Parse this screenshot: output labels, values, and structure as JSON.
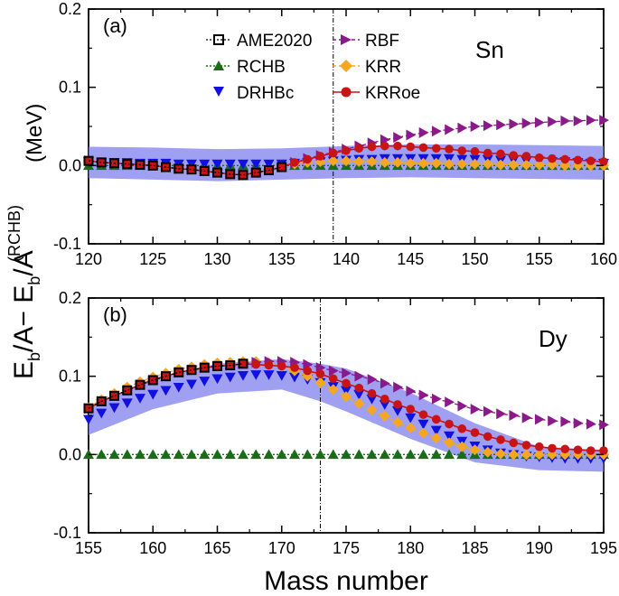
{
  "figure": {
    "xlabel": "Mass number",
    "ylabel": {
      "p1": "E",
      "s1": "b",
      "p2": "/A− E",
      "s2": "b",
      "p3": "/A",
      "sup": "(RCHB)"
    },
    "yunit": "(MeV)"
  },
  "legend": {
    "ame": "AME2020",
    "rchb": "RCHB",
    "drhbc": "DRHBc",
    "rbf": "RBF",
    "krr": "KRR",
    "krroe": "KRRoe"
  },
  "colors": {
    "ame": "#000000",
    "rchb": "#1a6b1a",
    "drhbc": "#1010e0",
    "rbf": "#8a1a8a",
    "krr": "#f5a623",
    "krroe": "#c81414",
    "band": "#8080ee"
  },
  "chart_data": [
    {
      "type": "scatter",
      "panel": "(a)",
      "element": "Sn",
      "xlim": [
        120,
        160
      ],
      "ylim": [
        -0.1,
        0.2
      ],
      "xticks": [
        "120",
        "125",
        "130",
        "135",
        "140",
        "145",
        "150",
        "155",
        "160"
      ],
      "yticks": [
        "-0.1",
        "0.0",
        "0.1",
        "0.2"
      ],
      "vline_x": 139,
      "series": {
        "AME2020": {
          "x": [
            120,
            121,
            122,
            123,
            124,
            125,
            126,
            127,
            128,
            129,
            130,
            131,
            132,
            133,
            134,
            135
          ],
          "y": [
            0.006,
            0.004,
            0.003,
            0.002,
            0.001,
            0.0,
            -0.002,
            -0.004,
            -0.005,
            -0.007,
            -0.009,
            -0.011,
            -0.012,
            -0.009,
            -0.006,
            -0.002
          ]
        },
        "RCHB": {
          "x": [
            120,
            121,
            122,
            123,
            124,
            125,
            126,
            127,
            128,
            129,
            130,
            131,
            132,
            133,
            134,
            135,
            136,
            137,
            138,
            139,
            140,
            141,
            142,
            143,
            144,
            145,
            146,
            147,
            148,
            149,
            150,
            151,
            152,
            153,
            154,
            155,
            156,
            157,
            158,
            159,
            160
          ],
          "y": [
            0,
            0,
            0,
            0,
            0,
            0,
            0,
            0,
            0,
            0,
            0,
            0,
            0,
            0,
            0,
            0,
            0,
            0,
            0,
            0,
            0,
            0,
            0,
            0,
            0,
            0,
            0,
            0,
            0,
            0,
            0,
            0,
            0,
            0,
            0,
            0,
            0,
            0,
            0,
            0,
            0
          ]
        },
        "DRHBc": {
          "x": [
            120,
            121,
            122,
            123,
            124,
            125,
            126,
            127,
            128,
            129,
            130,
            131,
            132,
            133,
            134,
            135,
            136,
            137,
            138,
            139,
            140,
            141,
            142,
            143,
            144,
            145,
            146,
            147,
            148,
            149,
            150,
            151,
            152,
            153,
            154,
            155,
            156,
            157,
            158,
            159,
            160
          ],
          "y": [
            0.005,
            0.004,
            0.004,
            0.004,
            0.003,
            0.003,
            0.003,
            0.002,
            0.002,
            0.002,
            0.002,
            0.002,
            0.002,
            0.002,
            0.002,
            0.002,
            0.003,
            0.004,
            0.005,
            0.006,
            0.007,
            0.008,
            0.008,
            0.009,
            0.009,
            0.009,
            0.009,
            0.009,
            0.009,
            0.008,
            0.008,
            0.008,
            0.007,
            0.007,
            0.006,
            0.006,
            0.005,
            0.005,
            0.004,
            0.003,
            0.003
          ]
        },
        "RBF": {
          "x": [
            120,
            121,
            122,
            123,
            124,
            125,
            126,
            127,
            128,
            129,
            130,
            131,
            132,
            133,
            134,
            135,
            136,
            137,
            138,
            139,
            140,
            141,
            142,
            143,
            144,
            145,
            146,
            147,
            148,
            149,
            150,
            151,
            152,
            153,
            154,
            155,
            156,
            157,
            158,
            159,
            160
          ],
          "y": [
            0.006,
            0.004,
            0.003,
            0.002,
            0.001,
            0.0,
            -0.002,
            -0.004,
            -0.005,
            -0.007,
            -0.009,
            -0.011,
            -0.012,
            -0.009,
            -0.006,
            -0.002,
            0.004,
            0.009,
            0.013,
            0.017,
            0.021,
            0.025,
            0.029,
            0.033,
            0.036,
            0.039,
            0.042,
            0.044,
            0.046,
            0.048,
            0.05,
            0.051,
            0.052,
            0.053,
            0.054,
            0.055,
            0.056,
            0.057,
            0.057,
            0.058,
            0.058
          ]
        },
        "KRR": {
          "x": [
            120,
            121,
            122,
            123,
            124,
            125,
            126,
            127,
            128,
            129,
            130,
            131,
            132,
            133,
            134,
            135,
            136,
            137,
            138,
            139,
            140,
            141,
            142,
            143,
            144,
            145,
            146,
            147,
            148,
            149,
            150,
            151,
            152,
            153,
            154,
            155,
            156,
            157,
            158,
            159,
            160
          ],
          "y": [
            0.006,
            0.004,
            0.003,
            0.002,
            0.001,
            0.0,
            -0.002,
            -0.004,
            -0.005,
            -0.007,
            -0.009,
            -0.011,
            -0.012,
            -0.009,
            -0.006,
            -0.002,
            0.002,
            0.004,
            0.005,
            0.006,
            0.006,
            0.005,
            0.005,
            0.004,
            0.004,
            0.003,
            0.003,
            0.003,
            0.002,
            0.002,
            0.002,
            0.002,
            0.001,
            0.001,
            0.001,
            0.001,
            0.001,
            0.0,
            0.0,
            0.0,
            0.0
          ]
        },
        "KRRoe": {
          "x": [
            120,
            121,
            122,
            123,
            124,
            125,
            126,
            127,
            128,
            129,
            130,
            131,
            132,
            133,
            134,
            135,
            136,
            137,
            138,
            139,
            140,
            141,
            142,
            143,
            144,
            145,
            146,
            147,
            148,
            149,
            150,
            151,
            152,
            153,
            154,
            155,
            156,
            157,
            158,
            159,
            160
          ],
          "y": [
            0.006,
            0.004,
            0.003,
            0.002,
            0.001,
            0.0,
            -0.002,
            -0.004,
            -0.005,
            -0.007,
            -0.009,
            -0.011,
            -0.012,
            -0.009,
            -0.006,
            -0.002,
            0.004,
            0.008,
            0.012,
            0.016,
            0.019,
            0.022,
            0.024,
            0.025,
            0.025,
            0.024,
            0.023,
            0.022,
            0.021,
            0.019,
            0.018,
            0.016,
            0.015,
            0.013,
            0.012,
            0.01,
            0.009,
            0.008,
            0.007,
            0.006,
            0.005
          ]
        }
      },
      "band": {
        "x": [
          120,
          125,
          130,
          135,
          140,
          145,
          150,
          155,
          160
        ],
        "lower": [
          -0.016,
          -0.018,
          -0.02,
          -0.018,
          -0.016,
          -0.015,
          -0.016,
          -0.017,
          -0.018
        ],
        "upper": [
          0.024,
          0.023,
          0.021,
          0.022,
          0.025,
          0.027,
          0.027,
          0.026,
          0.025
        ]
      }
    },
    {
      "type": "scatter",
      "panel": "(b)",
      "element": "Dy",
      "xlim": [
        155,
        195
      ],
      "ylim": [
        -0.1,
        0.2
      ],
      "xticks": [
        "155",
        "160",
        "165",
        "170",
        "175",
        "180",
        "185",
        "190",
        "195"
      ],
      "yticks": [
        "-0.1",
        "0.0",
        "0.1",
        "0.2"
      ],
      "vline_x": 173,
      "series": {
        "AME2020": {
          "x": [
            155,
            156,
            157,
            158,
            159,
            160,
            161,
            162,
            163,
            164,
            165,
            166,
            167
          ],
          "y": [
            0.059,
            0.068,
            0.075,
            0.082,
            0.089,
            0.095,
            0.1,
            0.105,
            0.108,
            0.111,
            0.113,
            0.114,
            0.116
          ]
        },
        "RCHB": {
          "x": [
            155,
            156,
            157,
            158,
            159,
            160,
            161,
            162,
            163,
            164,
            165,
            166,
            167,
            168,
            169,
            170,
            171,
            172,
            173,
            174,
            175,
            176,
            177,
            178,
            179,
            180,
            181,
            182,
            183,
            184,
            185,
            186,
            187,
            188,
            189,
            190,
            191,
            192,
            193,
            194,
            195
          ],
          "y": [
            0,
            0,
            0,
            0,
            0,
            0,
            0,
            0,
            0,
            0,
            0,
            0,
            0,
            0,
            0,
            0,
            0,
            0,
            0,
            0,
            0,
            0,
            0,
            0,
            0,
            0,
            0,
            0,
            0,
            0,
            0,
            0,
            0,
            0,
            0,
            0,
            0,
            0,
            0,
            0,
            0
          ]
        },
        "DRHBc": {
          "x": [
            155,
            156,
            157,
            158,
            159,
            160,
            161,
            162,
            163,
            164,
            165,
            166,
            167,
            168,
            169,
            170,
            171,
            172,
            173,
            174,
            175,
            176,
            177,
            178,
            179,
            180,
            181,
            182,
            183,
            184,
            185,
            186,
            187,
            188,
            189,
            190,
            191,
            192,
            193,
            194,
            195
          ],
          "y": [
            0.045,
            0.053,
            0.06,
            0.066,
            0.072,
            0.077,
            0.082,
            0.086,
            0.09,
            0.094,
            0.097,
            0.099,
            0.101,
            0.102,
            0.102,
            0.101,
            0.099,
            0.096,
            0.092,
            0.087,
            0.082,
            0.077,
            0.071,
            0.064,
            0.056,
            0.047,
            0.039,
            0.031,
            0.024,
            0.017,
            0.011,
            0.006,
            0.002,
            0.0,
            -0.002,
            -0.003,
            -0.004,
            -0.005,
            -0.005,
            -0.005,
            -0.005
          ]
        },
        "RBF": {
          "x": [
            155,
            156,
            157,
            158,
            159,
            160,
            161,
            162,
            163,
            164,
            165,
            166,
            167,
            168,
            169,
            170,
            171,
            172,
            173,
            174,
            175,
            176,
            177,
            178,
            179,
            180,
            181,
            182,
            183,
            184,
            185,
            186,
            187,
            188,
            189,
            190,
            191,
            192,
            193,
            194,
            195
          ],
          "y": [
            0.059,
            0.068,
            0.075,
            0.082,
            0.089,
            0.095,
            0.1,
            0.105,
            0.108,
            0.111,
            0.113,
            0.114,
            0.116,
            0.118,
            0.119,
            0.119,
            0.118,
            0.115,
            0.111,
            0.107,
            0.104,
            0.1,
            0.096,
            0.091,
            0.086,
            0.081,
            0.076,
            0.071,
            0.067,
            0.062,
            0.058,
            0.055,
            0.052,
            0.05,
            0.047,
            0.045,
            0.043,
            0.042,
            0.04,
            0.039,
            0.038
          ]
        },
        "KRR": {
          "x": [
            155,
            156,
            157,
            158,
            159,
            160,
            161,
            162,
            163,
            164,
            165,
            166,
            167,
            168,
            169,
            170,
            171,
            172,
            173,
            174,
            175,
            176,
            177,
            178,
            179,
            180,
            181,
            182,
            183,
            184,
            185,
            186,
            187,
            188,
            189,
            190,
            191,
            192,
            193,
            194,
            195
          ],
          "y": [
            0.06,
            0.07,
            0.078,
            0.086,
            0.093,
            0.099,
            0.104,
            0.109,
            0.112,
            0.115,
            0.117,
            0.118,
            0.119,
            0.119,
            0.117,
            0.113,
            0.107,
            0.1,
            0.092,
            0.083,
            0.074,
            0.065,
            0.057,
            0.049,
            0.041,
            0.034,
            0.027,
            0.021,
            0.015,
            0.01,
            0.006,
            0.003,
            0.001,
            0.0,
            0.0,
            0.0,
            0.0,
            0.0,
            0.0,
            0.0,
            0.0
          ]
        },
        "KRRoe": {
          "x": [
            155,
            156,
            157,
            158,
            159,
            160,
            161,
            162,
            163,
            164,
            165,
            166,
            167,
            168,
            169,
            170,
            171,
            172,
            173,
            174,
            175,
            176,
            177,
            178,
            179,
            180,
            181,
            182,
            183,
            184,
            185,
            186,
            187,
            188,
            189,
            190,
            191,
            192,
            193,
            194,
            195
          ],
          "y": [
            0.059,
            0.068,
            0.075,
            0.082,
            0.089,
            0.095,
            0.1,
            0.105,
            0.108,
            0.111,
            0.113,
            0.114,
            0.116,
            0.115,
            0.114,
            0.113,
            0.111,
            0.107,
            0.103,
            0.097,
            0.091,
            0.085,
            0.078,
            0.071,
            0.064,
            0.058,
            0.051,
            0.045,
            0.039,
            0.033,
            0.028,
            0.023,
            0.019,
            0.015,
            0.012,
            0.01,
            0.008,
            0.007,
            0.006,
            0.005,
            0.005
          ]
        }
      },
      "band": {
        "x": [
          155,
          160,
          165,
          170,
          173,
          175,
          180,
          185,
          190,
          195
        ],
        "lower": [
          0.025,
          0.058,
          0.078,
          0.083,
          0.068,
          0.055,
          0.02,
          -0.01,
          -0.02,
          -0.022
        ],
        "upper": [
          0.06,
          0.098,
          0.116,
          0.122,
          0.116,
          0.11,
          0.079,
          0.04,
          0.01,
          0.006
        ]
      }
    }
  ]
}
